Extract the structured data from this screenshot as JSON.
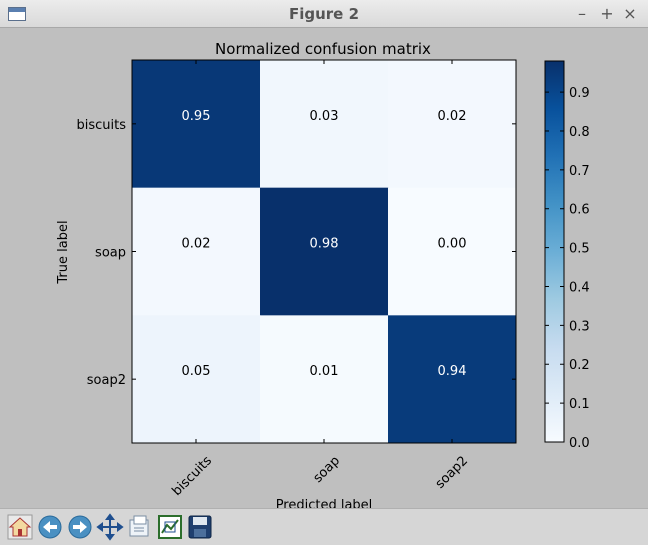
{
  "window": {
    "title": "Figure 2",
    "controls": [
      "–",
      "+",
      "×"
    ]
  },
  "chart_data": {
    "type": "heatmap",
    "title": "Normalized confusion matrix",
    "xlabel": "Predicted label",
    "ylabel": "True label",
    "x_categories": [
      "biscuits",
      "soap",
      "soap2"
    ],
    "y_categories": [
      "biscuits",
      "soap",
      "soap2"
    ],
    "values": [
      [
        0.95,
        0.03,
        0.02
      ],
      [
        0.02,
        0.98,
        0.0
      ],
      [
        0.05,
        0.01,
        0.94
      ]
    ],
    "cell_labels": [
      [
        "0.95",
        "0.03",
        "0.02"
      ],
      [
        "0.02",
        "0.98",
        "0.00"
      ],
      [
        "0.05",
        "0.01",
        "0.94"
      ]
    ],
    "colormap": "Blues",
    "colorbar": {
      "min": 0.0,
      "max": 0.98,
      "ticks": [
        0.0,
        0.1,
        0.2,
        0.3,
        0.4,
        0.5,
        0.6,
        0.7,
        0.8,
        0.9
      ],
      "tick_labels": [
        "0.0",
        "0.1",
        "0.2",
        "0.3",
        "0.4",
        "0.5",
        "0.6",
        "0.7",
        "0.8",
        "0.9"
      ]
    }
  },
  "toolbar": {
    "icons": [
      "home-icon",
      "back-arrow-icon",
      "forward-arrow-icon",
      "pan-move-icon",
      "zoom-rect-icon",
      "configure-subplots-icon",
      "save-disk-icon"
    ]
  }
}
